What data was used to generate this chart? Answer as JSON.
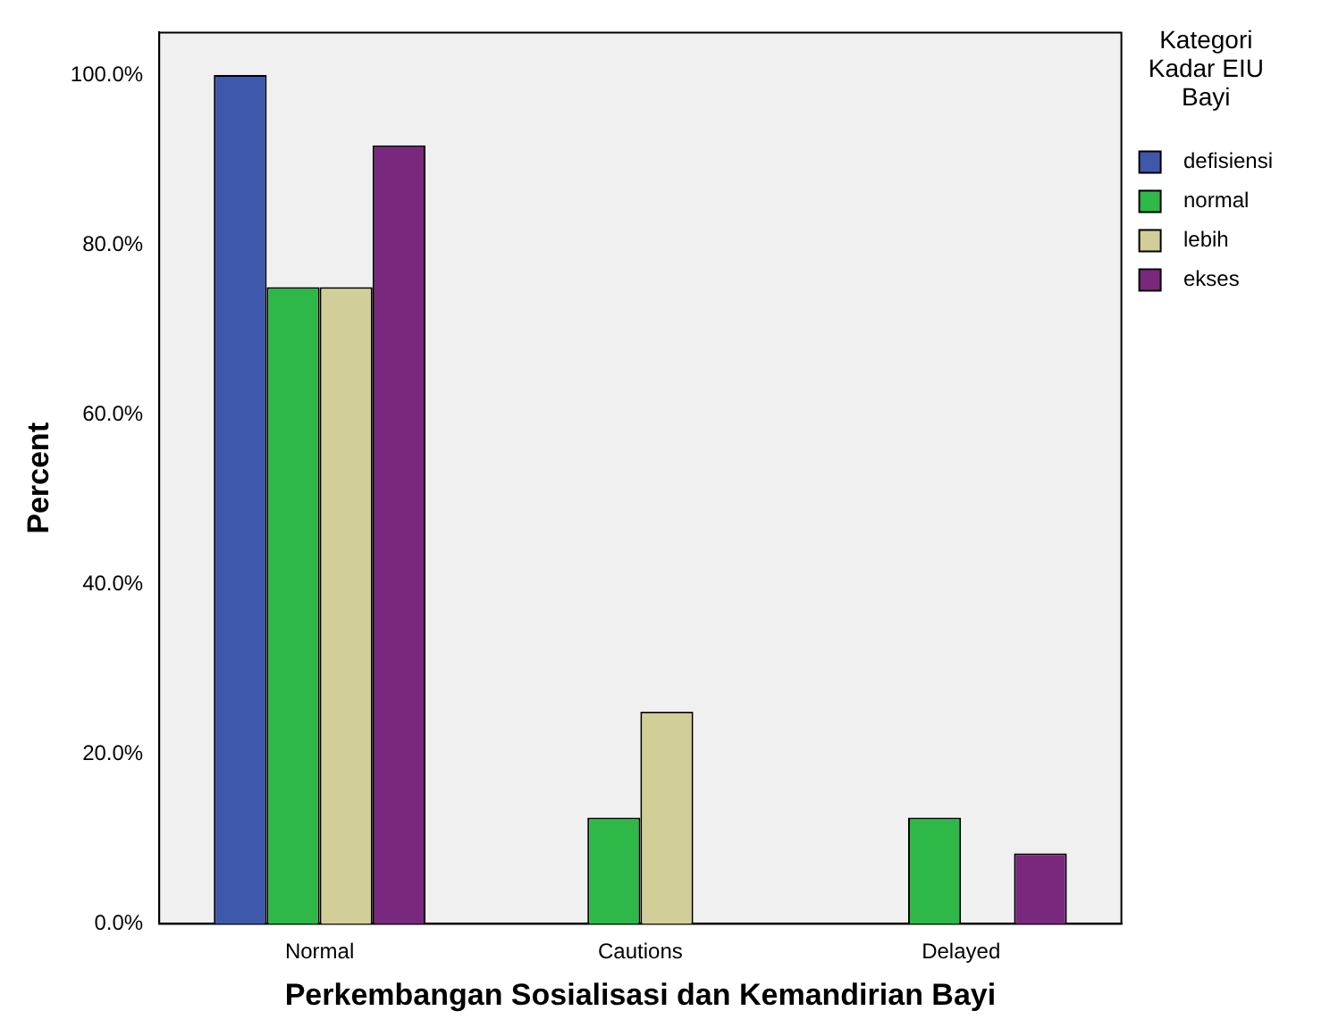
{
  "chart_data": {
    "type": "bar",
    "xlabel": "Perkembangan Sosialisasi dan Kemandirian Bayi",
    "ylabel": "Percent",
    "legend_title": "Kategori Kadar EIU Bayi",
    "legend": "top right",
    "grid": false,
    "categories": [
      "Normal",
      "Cautions",
      "Delayed"
    ],
    "ylim": [
      0,
      105
    ],
    "yticks": [
      {
        "value": 0,
        "label": "0.0%"
      },
      {
        "value": 20,
        "label": "20.0%"
      },
      {
        "value": 40,
        "label": "40.0%"
      },
      {
        "value": 60,
        "label": "60.0%"
      },
      {
        "value": 80,
        "label": "80.0%"
      },
      {
        "value": 100,
        "label": "100.0%"
      }
    ],
    "series": [
      {
        "name": "defisiensi",
        "color": "#3e58ac",
        "values": [
          100,
          0,
          0
        ]
      },
      {
        "name": "normal",
        "color": "#2eb848",
        "values": [
          75,
          12.5,
          12.5
        ]
      },
      {
        "name": "lebih",
        "color": "#d2ce98",
        "values": [
          75,
          25,
          0
        ]
      },
      {
        "name": "ekses",
        "color": "#7a287e",
        "values": [
          91.7,
          0,
          8.3
        ]
      }
    ]
  }
}
